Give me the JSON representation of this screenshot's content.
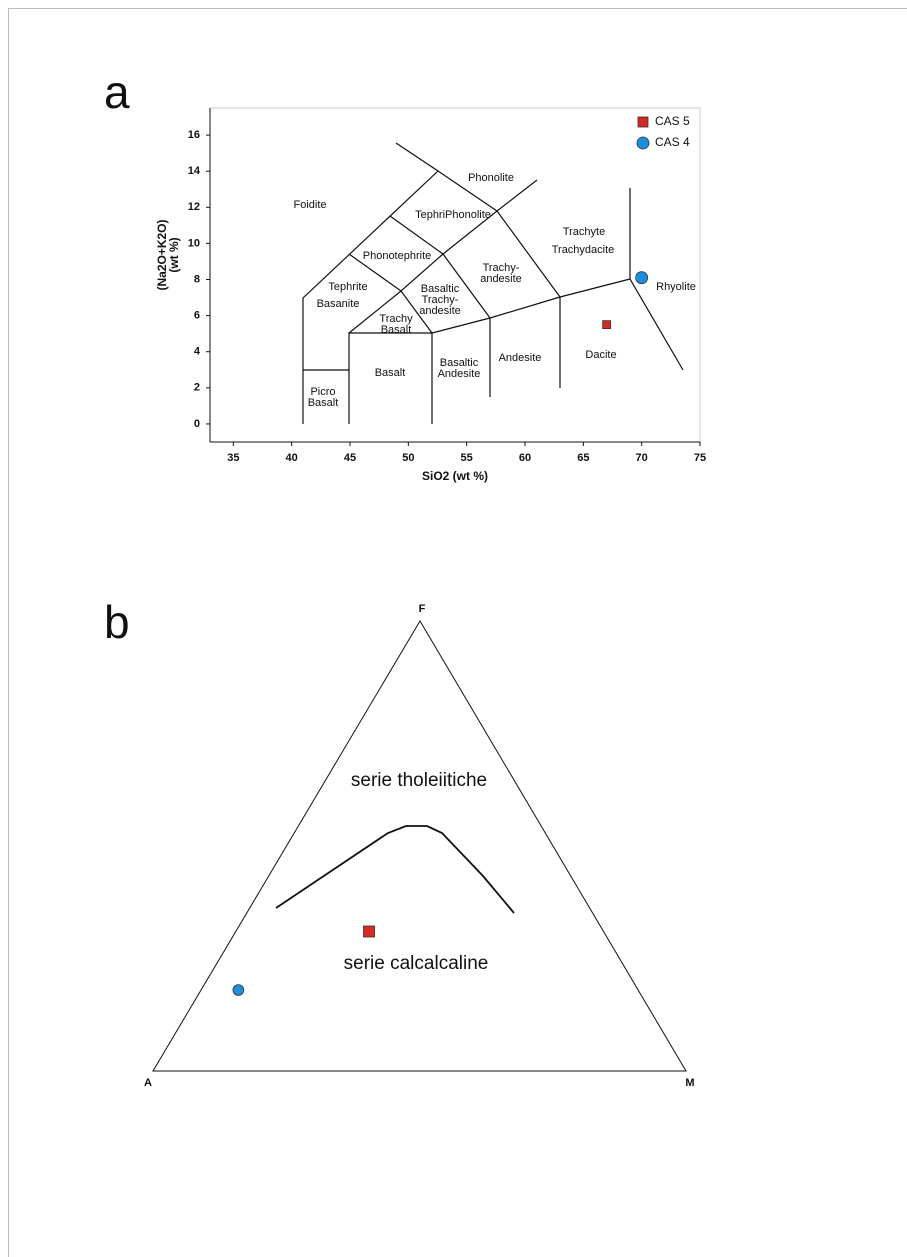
{
  "chart_data": [
    {
      "type": "scatter",
      "label": "a",
      "xlabel": "SiO2 (wt %)",
      "ylabel": [
        "(Na2O+K2O)",
        "(wt %)"
      ],
      "xlim": [
        33,
        75
      ],
      "ylim": [
        -1,
        17.5
      ],
      "xticks": [
        35,
        40,
        45,
        50,
        55,
        60,
        65,
        70,
        75
      ],
      "yticks": [
        0,
        2,
        4,
        6,
        8,
        10,
        12,
        14,
        16
      ],
      "legend": "upper right",
      "series": [
        {
          "name": "CAS 5",
          "color": "#d62a22",
          "marker": "square",
          "x": [
            67
          ],
          "values": [
            5.5
          ]
        },
        {
          "name": "CAS 4",
          "color": "#1a8fe0",
          "marker": "circle",
          "x": [
            70
          ],
          "values": [
            8.1
          ]
        }
      ],
      "fields": [
        [
          "Foidite"
        ],
        [
          "Phonolite"
        ],
        [
          "TephriPhonolite"
        ],
        [
          "Phonotephrite"
        ],
        [
          "Tephrite"
        ],
        [
          "Basanite"
        ],
        [
          "Basaltic",
          "Trachy-",
          "andesite"
        ],
        [
          "Trachy",
          "Basalt"
        ],
        [
          "Basalt"
        ],
        [
          "Picro",
          "Basalt"
        ],
        [
          "Basaltic",
          "Andesite"
        ],
        [
          "Trachy-",
          "andesite"
        ],
        [
          "Andesite"
        ],
        [
          "Trachyte"
        ],
        [
          "Trachydacite"
        ],
        [
          "Dacite"
        ],
        [
          "Rhyolite"
        ]
      ]
    },
    {
      "type": "ternary",
      "label": "b",
      "vertices": [
        "A",
        "F",
        "M"
      ],
      "regions": [
        "serie tholeiitiche",
        "serie calcalcaline"
      ],
      "series": [
        {
          "color": "#d62a22",
          "marker": "square",
          "A": [
            44
          ],
          "F": [
            31
          ],
          "M": [
            25
          ]
        },
        {
          "color": "#1a8fe0",
          "marker": "circle",
          "A": [
            75
          ],
          "F": [
            18
          ],
          "M": [
            7
          ]
        }
      ]
    }
  ]
}
